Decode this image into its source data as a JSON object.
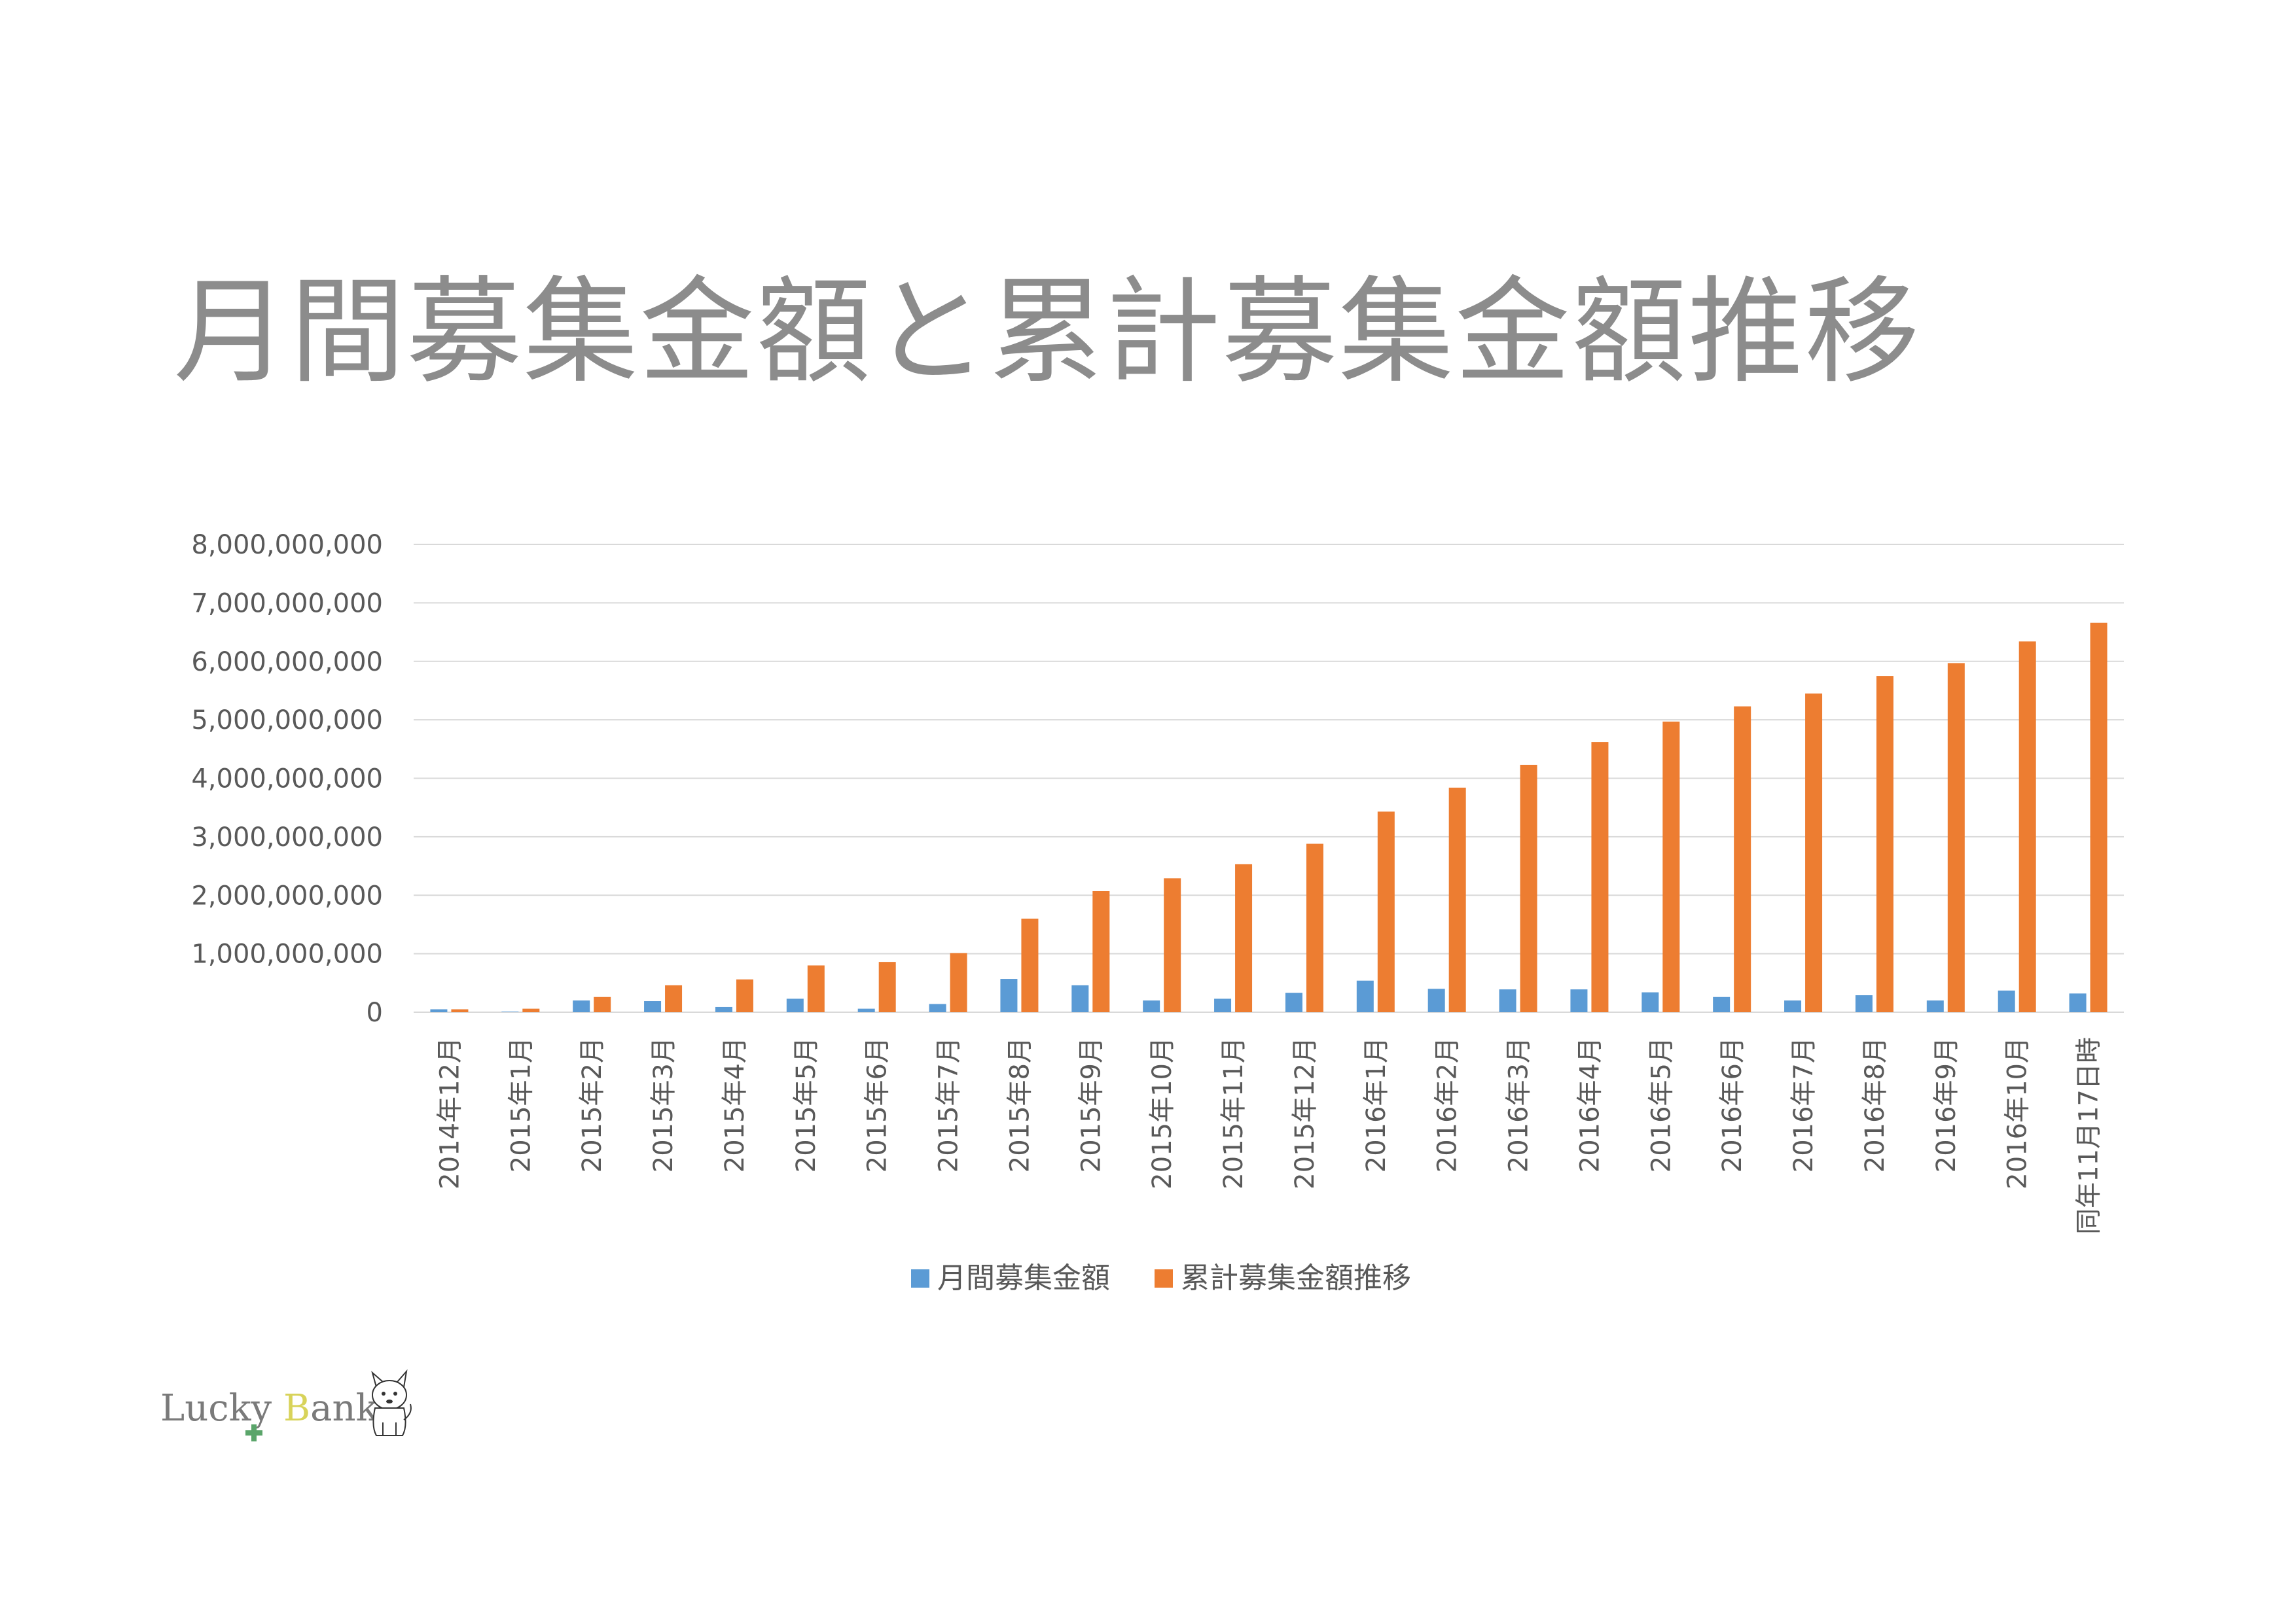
{
  "title": "月間募集金額と累計募集金額推移",
  "colors": {
    "monthly": "#5b9bd5",
    "cumulative": "#ed7d31",
    "grid": "#d9d9d9",
    "text": "#595959",
    "title": "#8c8c8c"
  },
  "logo": {
    "text_part1": "Lucky",
    "text_part2": "B",
    "text_part3": "ank",
    "icon": "dog-icon"
  },
  "chart_data": {
    "type": "bar",
    "title": "",
    "xlabel": "",
    "ylabel": "",
    "ylim": [
      0,
      8000000000
    ],
    "yticks": [
      "0",
      "1,000,000,000",
      "2,000,000,000",
      "3,000,000,000",
      "4,000,000,000",
      "5,000,000,000",
      "6,000,000,000",
      "7,000,000,000",
      "8,000,000,000"
    ],
    "grid": true,
    "legend_position": "bottom",
    "categories": [
      "2014年12月",
      "2015年1月",
      "2015年2月",
      "2015年3月",
      "2015年4月",
      "2015年5月",
      "2015年6月",
      "2015年7月",
      "2015年8月",
      "2015年9月",
      "2015年10月",
      "2015年11月",
      "2015年12月",
      "2016年1月",
      "2016年2月",
      "2016年3月",
      "2016年4月",
      "2016年5月",
      "2016年6月",
      "2016年7月",
      "2016年8月",
      "2016年9月",
      "2016年10月",
      "同年11月17日時"
    ],
    "series": [
      {
        "name": "月間募集金額",
        "values": [
          50000000,
          10000000,
          200000000,
          190000000,
          90000000,
          230000000,
          60000000,
          140000000,
          570000000,
          460000000,
          200000000,
          230000000,
          330000000,
          540000000,
          400000000,
          390000000,
          390000000,
          340000000,
          260000000,
          200000000,
          290000000,
          200000000,
          370000000,
          320000000
        ]
      },
      {
        "name": "累計募集金額推移",
        "values": [
          50000000,
          60000000,
          260000000,
          460000000,
          560000000,
          800000000,
          860000000,
          1010000000,
          1600000000,
          2070000000,
          2290000000,
          2530000000,
          2880000000,
          3430000000,
          3840000000,
          4230000000,
          4620000000,
          4970000000,
          5230000000,
          5450000000,
          5750000000,
          5970000000,
          6340000000,
          6660000000
        ]
      }
    ]
  }
}
